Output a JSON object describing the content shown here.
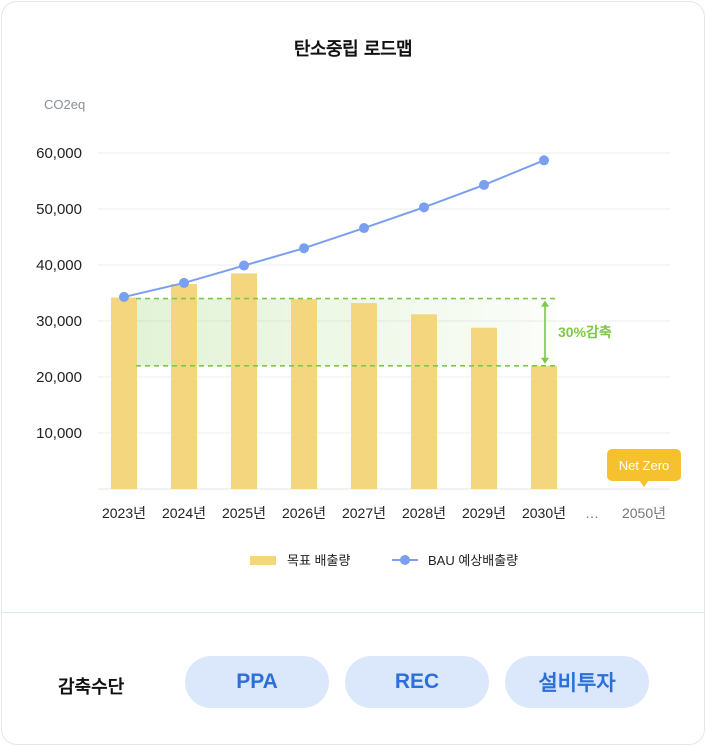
{
  "chart_data": {
    "type": "bar",
    "title": "탄소중립 로드맵",
    "ylabel": "CO2eq",
    "ylim": [
      0,
      60000
    ],
    "yticks": [
      "60,000",
      "50,000",
      "40,000",
      "30,000",
      "20,000",
      "10,000"
    ],
    "categories": [
      "2023년",
      "2024년",
      "2025년",
      "2026년",
      "2027년",
      "2028년",
      "2029년",
      "2030년",
      "…",
      "2050년"
    ],
    "series": [
      {
        "name": "목표 배출량",
        "type": "bar",
        "color": "#f4d67e",
        "values": [
          34200,
          36600,
          38500,
          33900,
          33200,
          31200,
          28800,
          22000,
          null,
          0
        ]
      },
      {
        "name": "BAU 예상배출량",
        "type": "line",
        "color": "#7b9ff0",
        "values": [
          34300,
          36800,
          39900,
          43000,
          46600,
          50300,
          54300,
          58700,
          null,
          null
        ]
      }
    ],
    "reduction_band": {
      "from": 34000,
      "to": 22000,
      "label": "30%감축",
      "color": "#7dc846"
    },
    "annotation": {
      "text": "Net Zero",
      "category": "2050년",
      "color": "#f5c12e"
    },
    "grid": true,
    "legend": "bottom-center"
  },
  "footer": {
    "label": "감축수단",
    "buttons": [
      "PPA",
      "REC",
      "설비투자"
    ]
  }
}
